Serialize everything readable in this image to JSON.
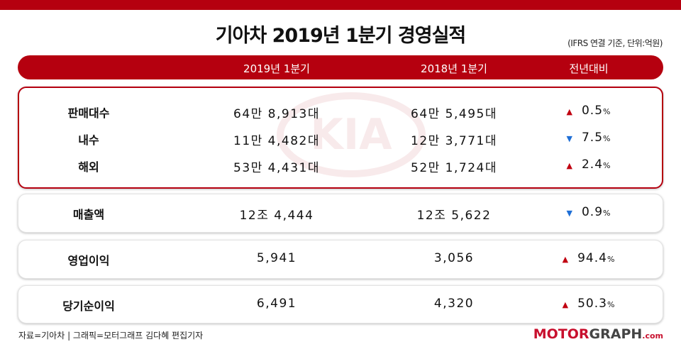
{
  "title": "기아차 2019년 1분기 경영실적",
  "note": "(IFRS 연결 기준, 단위:억원)",
  "header": {
    "col1": "2019년 1분기",
    "col2": "2018년 1분기",
    "col3": "전년대비"
  },
  "rows": [
    {
      "label": "판매대수",
      "v2019": "64만 8,913대",
      "v2018": "64만 5,495대",
      "dir": "up",
      "change": "0.5"
    },
    {
      "label": "내수",
      "v2019": "11만 4,482대",
      "v2018": "12만 3,771대",
      "dir": "down",
      "change": "7.5"
    },
    {
      "label": "해외",
      "v2019": "53만 4,431대",
      "v2018": "52만 1,724대",
      "dir": "up",
      "change": "2.4"
    },
    {
      "label": "매출액",
      "v2019": "12조 4,444",
      "v2018": "12조 5,622",
      "dir": "down",
      "change": "0.9"
    },
    {
      "label": "영업이익",
      "v2019": "5,941",
      "v2018": "3,056",
      "dir": "up",
      "change": "94.4"
    },
    {
      "label": "당기순이익",
      "v2019": "6,491",
      "v2018": "4,320",
      "dir": "up",
      "change": "50.3"
    }
  ],
  "pct_symbol": "%",
  "logo_text": "KIA",
  "footer": {
    "credit": "자료=기아차  |  그래픽=모터그래프 김다혜 편집기자",
    "brand_motor": "MOTOR",
    "brand_graph": "GRAPH",
    "brand_com": ".com"
  },
  "colors": {
    "brand": "#b5000f",
    "up": "#c00010",
    "down": "#1f6fd6"
  }
}
